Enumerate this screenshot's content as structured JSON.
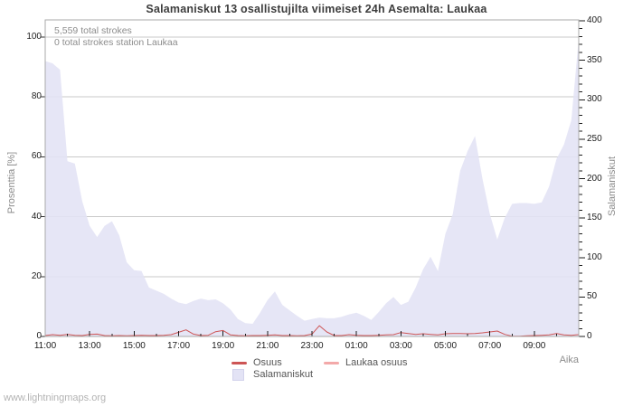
{
  "watermark": "www.lightningmaps.org",
  "chart_data": {
    "type": "area",
    "title": "Salamaniskut 13 osallistujilta viimeiset 24h Asemalta: Laukaa",
    "xlabel": "Aika",
    "annotations": [
      "5,559 total strokes",
      "0 total strokes station Laukaa"
    ],
    "x_ticks": [
      "11:00",
      "13:00",
      "15:00",
      "17:00",
      "19:00",
      "21:00",
      "23:00",
      "01:00",
      "03:00",
      "05:00",
      "07:00",
      "09:00"
    ],
    "x_range_hours": 24,
    "points_interval_minutes": 20,
    "left_axis": {
      "label": "Prosenttia  [%]",
      "ticks": [
        0,
        20,
        40,
        60,
        80,
        100
      ],
      "range": [
        0,
        100
      ],
      "gridlines": [
        20,
        40,
        60,
        80,
        100
      ]
    },
    "right_axis": {
      "label": "Salamaniskut",
      "ticks": [
        0,
        50,
        100,
        150,
        200,
        250,
        300,
        350,
        400
      ],
      "range": [
        0,
        400
      ],
      "minor_tick_step": 10
    },
    "grid_color": "#c9c9c9",
    "frame_color": "#a9a9a9",
    "tick_color": "#1c1c1c",
    "legend_position": "bottom-center",
    "series": [
      {
        "name": "Osuus",
        "type": "line",
        "axis": "left",
        "color": "#cd5555",
        "values": [
          0.3,
          0.6,
          0.4,
          0.7,
          0.4,
          0.3,
          0.7,
          0.8,
          0.3,
          0.2,
          0.3,
          0.2,
          0.3,
          0.4,
          0.3,
          0.3,
          0.4,
          0.6,
          1.4,
          2.2,
          0.8,
          0.3,
          0.4,
          1.6,
          2.0,
          0.5,
          0.3,
          0.2,
          0.3,
          0.3,
          0.4,
          0.5,
          0.3,
          0.3,
          0.2,
          0.3,
          0.8,
          3.6,
          1.5,
          0.3,
          0.3,
          0.6,
          0.4,
          0.3,
          0.3,
          0.4,
          0.5,
          0.6,
          1.3,
          1.0,
          0.7,
          0.9,
          0.7,
          0.5,
          0.9,
          1.0,
          1.0,
          0.9,
          1.0,
          1.2,
          1.5,
          1.8,
          0.7,
          0.1,
          0.1,
          0.2,
          0.3,
          0.4,
          0.5,
          1.0,
          0.5,
          0.4,
          0.6
        ]
      },
      {
        "name": "Laukaa osuus",
        "type": "line",
        "axis": "left",
        "color": "#f3a9a9",
        "values": [
          0,
          0,
          0,
          0,
          0,
          0,
          0,
          0,
          0,
          0,
          0,
          0,
          0,
          0,
          0,
          0,
          0,
          0,
          0,
          0,
          0,
          0,
          0,
          0,
          0,
          0,
          0,
          0,
          0,
          0,
          0,
          0,
          0,
          0,
          0,
          0,
          0,
          0,
          0,
          0,
          0,
          0,
          0,
          0,
          0,
          0,
          0,
          0,
          0,
          0,
          0,
          0,
          0,
          0,
          0,
          0,
          0,
          0,
          0,
          0,
          0,
          0,
          0,
          0,
          0,
          0,
          0,
          0,
          0,
          0,
          0,
          0,
          0
        ]
      },
      {
        "name": "Salamaniskut",
        "type": "area",
        "axis": "right",
        "color": "#e3e3f5",
        "values": [
          349,
          346,
          338,
          222,
          219,
          171,
          140,
          126,
          140,
          146,
          128,
          94,
          84,
          83,
          62,
          58,
          54,
          48,
          43,
          41,
          45,
          48,
          46,
          47,
          42,
          34,
          22,
          17,
          16,
          30,
          46,
          57,
          40,
          33,
          26,
          20,
          22,
          24,
          23,
          23,
          25,
          28,
          30,
          26,
          21,
          31,
          42,
          50,
          40,
          44,
          62,
          85,
          101,
          83,
          130,
          155,
          210,
          235,
          254,
          200,
          155,
          123,
          150,
          168,
          169,
          169,
          168,
          170,
          190,
          225,
          243,
          274,
          378
        ]
      }
    ]
  }
}
